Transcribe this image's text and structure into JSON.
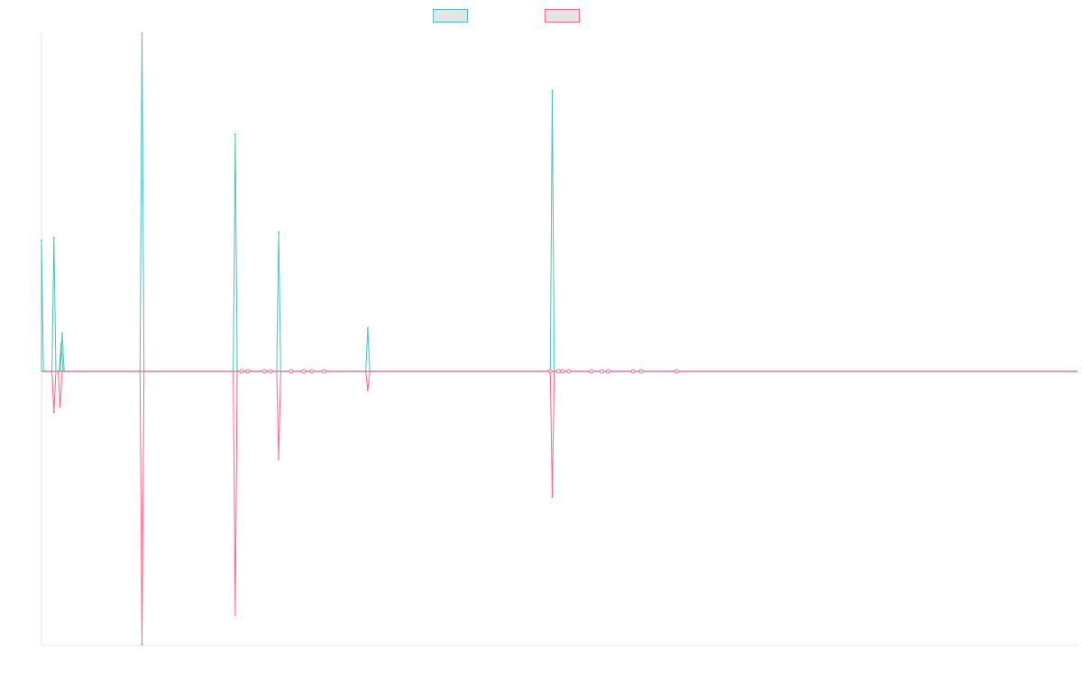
{
  "chart_data": {
    "type": "line",
    "title": "",
    "xlabel": "",
    "ylabel": "",
    "grid": false,
    "axes_labels_shown": false,
    "legend": {
      "placement": "top-center",
      "entries_have_text": false
    },
    "colors": {
      "series_a": "#4bc0c0",
      "series_b": "#ff6384",
      "baseline": "#9aa7bf",
      "legend_fill": "#e5e5e5",
      "axis": "#e5e5e5"
    },
    "xlim": [
      0,
      100
    ],
    "ylim": [
      -1.0,
      1.24
    ],
    "series": [
      {
        "key": "a",
        "direction": 1,
        "peaks": [
          [
            0.0,
            0.48
          ],
          [
            1.2,
            0.49
          ],
          [
            1.9,
            0.1
          ],
          [
            2.0,
            0.14
          ],
          [
            9.7,
            1.24
          ],
          [
            18.7,
            0.87
          ],
          [
            22.9,
            0.51
          ],
          [
            31.5,
            0.16
          ],
          [
            49.3,
            1.03
          ]
        ]
      },
      {
        "key": "b",
        "direction": -1,
        "peaks": [
          [
            1.2,
            0.15
          ],
          [
            1.8,
            0.13
          ],
          [
            9.7,
            1.0
          ],
          [
            18.7,
            0.89
          ],
          [
            22.9,
            0.32
          ],
          [
            31.5,
            0.07
          ],
          [
            49.3,
            0.46
          ]
        ]
      }
    ],
    "point_markers_x": [
      19.3,
      19.9,
      21.5,
      22.1,
      24.1,
      25.3,
      26.1,
      27.3,
      49.1,
      49.9,
      50.3,
      50.9,
      53.1,
      54.1,
      54.7,
      57.1,
      57.9,
      61.3
    ]
  }
}
